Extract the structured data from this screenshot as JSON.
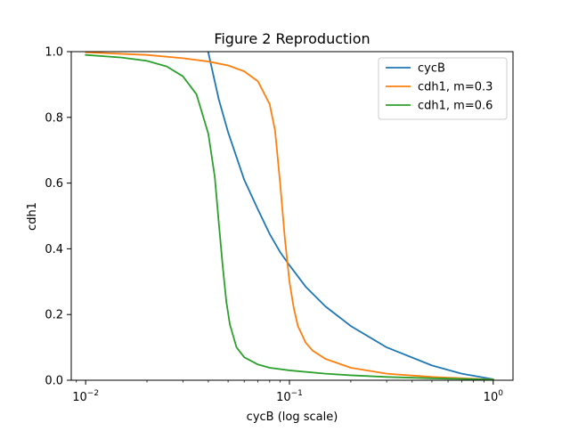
{
  "chart_data": {
    "type": "line",
    "title": "Figure 2 Reproduction",
    "xlabel": "cycB (log scale)",
    "ylabel": "cdh1",
    "xscale": "log",
    "xlim": [
      0.0085,
      1.25
    ],
    "ylim": [
      0,
      1.0
    ],
    "x_ticks": [
      {
        "value": 0.01,
        "base": "10",
        "exp": "−2"
      },
      {
        "value": 0.1,
        "base": "10",
        "exp": "−1"
      },
      {
        "value": 1,
        "base": "10",
        "exp": "0"
      }
    ],
    "y_ticks": [
      {
        "value": 0.0,
        "label": "0.0"
      },
      {
        "value": 0.2,
        "label": "0.2"
      },
      {
        "value": 0.4,
        "label": "0.4"
      },
      {
        "value": 0.6,
        "label": "0.6"
      },
      {
        "value": 0.8,
        "label": "0.8"
      },
      {
        "value": 1.0,
        "label": "1.0"
      }
    ],
    "grid": false,
    "legend_position": "upper right",
    "series": [
      {
        "name": "cycB",
        "color": "#1f77b4",
        "x": [
          0.0399,
          0.045,
          0.05,
          0.06,
          0.07,
          0.08,
          0.09,
          0.1,
          0.12,
          0.15,
          0.2,
          0.3,
          0.5,
          0.7,
          1.0
        ],
        "y": [
          1.0,
          0.855,
          0.755,
          0.61,
          0.52,
          0.445,
          0.39,
          0.35,
          0.285,
          0.225,
          0.165,
          0.1,
          0.045,
          0.02,
          0.003
        ]
      },
      {
        "name": "cdh1, m=0.3",
        "color": "#ff7f0e",
        "x": [
          0.01,
          0.02,
          0.03,
          0.04,
          0.05,
          0.06,
          0.07,
          0.08,
          0.085,
          0.09,
          0.095,
          0.1,
          0.105,
          0.11,
          0.12,
          0.13,
          0.15,
          0.2,
          0.3,
          0.5,
          1.0
        ],
        "y": [
          0.998,
          0.99,
          0.98,
          0.97,
          0.958,
          0.94,
          0.91,
          0.84,
          0.76,
          0.6,
          0.43,
          0.3,
          0.22,
          0.165,
          0.115,
          0.09,
          0.065,
          0.038,
          0.02,
          0.01,
          0.002
        ]
      },
      {
        "name": "cdh1, m=0.6",
        "color": "#2ca02c",
        "x": [
          0.01,
          0.015,
          0.02,
          0.025,
          0.03,
          0.035,
          0.04,
          0.043,
          0.045,
          0.047,
          0.049,
          0.051,
          0.055,
          0.06,
          0.07,
          0.08,
          0.1,
          0.15,
          0.2,
          0.3,
          0.5,
          1.0
        ],
        "y": [
          0.99,
          0.982,
          0.972,
          0.955,
          0.925,
          0.87,
          0.75,
          0.62,
          0.48,
          0.35,
          0.24,
          0.17,
          0.1,
          0.07,
          0.048,
          0.038,
          0.03,
          0.02,
          0.015,
          0.01,
          0.006,
          0.002
        ]
      }
    ]
  }
}
